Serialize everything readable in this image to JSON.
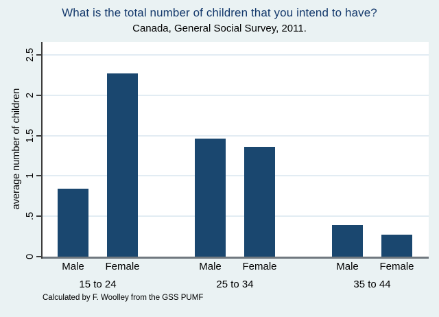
{
  "title": "What is the total number of children that you intend to have?",
  "subtitle": "Canada, General Social Survey, 2011.",
  "note": "Calculated by F. Woolley from the GSS PUMF",
  "chart_data": {
    "type": "bar",
    "title": "What is the total number of children that you intend to have?",
    "subtitle": "Canada, General Social Survey, 2011.",
    "xlabel": "",
    "ylabel": "average number of children",
    "ylim": [
      0,
      2.5
    ],
    "yticks": {
      "values": [
        0,
        0.5,
        1,
        1.5,
        2,
        2.5
      ],
      "labels": [
        "0",
        ".5",
        "1",
        "1.5",
        "2",
        "2.5"
      ]
    },
    "grid": "horizontal",
    "legend": "none",
    "groups": [
      {
        "label": "15 to 24",
        "bars": [
          {
            "label": "Male",
            "value": 0.84
          },
          {
            "label": "Female",
            "value": 2.27
          }
        ]
      },
      {
        "label": "25 to 34",
        "bars": [
          {
            "label": "Male",
            "value": 1.46
          },
          {
            "label": "Female",
            "value": 1.36
          }
        ]
      },
      {
        "label": "35 to 44",
        "bars": [
          {
            "label": "Male",
            "value": 0.39
          },
          {
            "label": "Female",
            "value": 0.27
          }
        ]
      }
    ],
    "colors": {
      "bar": "#1A476F",
      "background": "#EAF2F3",
      "plot_background": "#FFFFFF",
      "gridline": "#E2ECF3",
      "title_text": "#13386B",
      "y_axis_line": "#3D3D3D",
      "x_axis_line": "#70787F",
      "text": "#000000"
    }
  }
}
